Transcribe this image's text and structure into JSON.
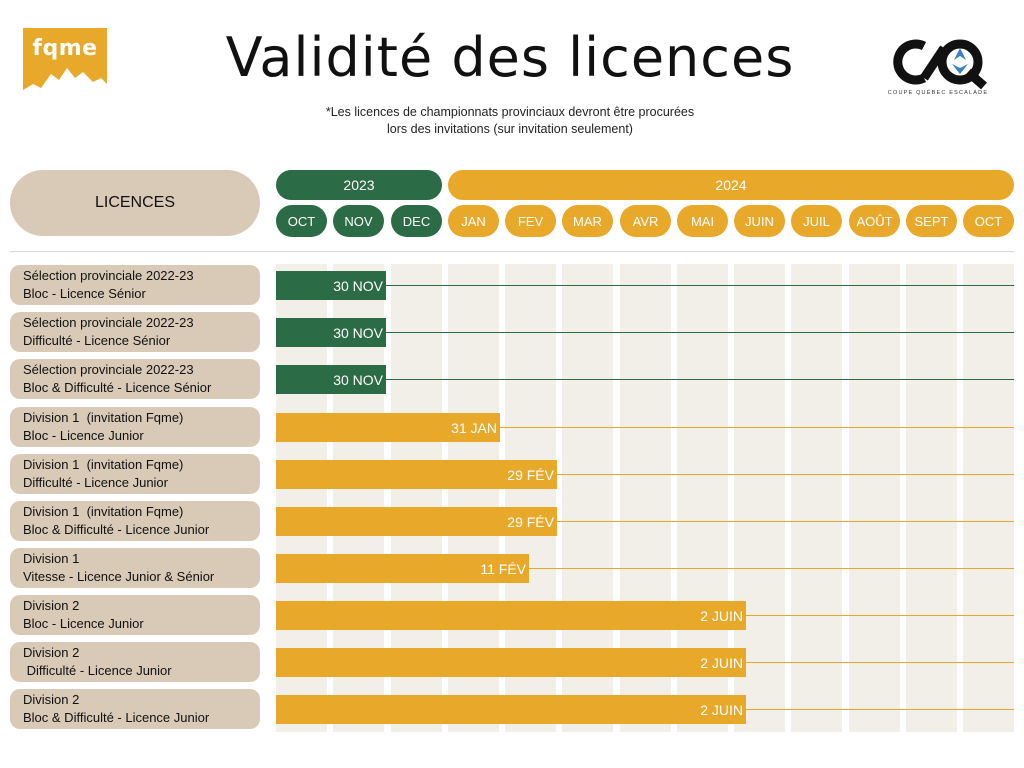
{
  "header": {
    "logo_text": "fqme",
    "title": "Validité des licences",
    "note_line1": "*Les licences de championnats provinciaux devront être procurées",
    "note_line2": "lors des invitations (sur invitation seulement)",
    "cq_tagline": "COUPE QUÉBEC ESCALADE"
  },
  "colors": {
    "green": "#2b6b45",
    "gold": "#e8a829",
    "beige": "#d8cab6",
    "column": "#f2efe8"
  },
  "table": {
    "licences_label": "LICENCES",
    "years": [
      "2023",
      "2024"
    ],
    "months": [
      "OCT",
      "NOV",
      "DEC",
      "JAN",
      "FEV",
      "MAR",
      "AVR",
      "MAI",
      "JUIN",
      "JUIL",
      "AOÛT",
      "SEPT",
      "OCT"
    ],
    "rows": [
      {
        "line1": "Sélection provinciale 2022-23",
        "line2": "Bloc - Licence Sénior",
        "end": "30 NOV",
        "color": "green",
        "months_valid": 2
      },
      {
        "line1": "Sélection provinciale 2022-23",
        "line2": "Difficulté - Licence Sénior",
        "end": "30 NOV",
        "color": "green",
        "months_valid": 2
      },
      {
        "line1": "Sélection provinciale 2022-23",
        "line2": "Bloc & Difficulté - Licence Sénior",
        "end": "30 NOV",
        "color": "green",
        "months_valid": 2
      },
      {
        "line1": "Division 1  (invitation Fqme)",
        "line2": "Bloc - Licence Junior",
        "end": "31 JAN",
        "color": "gold",
        "months_valid": 4
      },
      {
        "line1": "Division 1  (invitation Fqme)",
        "line2": "Difficulté - Licence Junior",
        "end": "29 FÉV",
        "color": "gold",
        "months_valid": 5
      },
      {
        "line1": "Division 1  (invitation Fqme)",
        "line2": "Bloc & Difficulté - Licence Junior",
        "end": "29 FÉV",
        "color": "gold",
        "months_valid": 5
      },
      {
        "line1": "Division 1",
        "line2": "Vitesse - Licence Junior & Sénior",
        "end": "11 FÉV",
        "color": "gold",
        "months_valid": 4.5
      },
      {
        "line1": "Division 2",
        "line2": "Bloc - Licence Junior",
        "end": "2 JUIN",
        "color": "gold",
        "months_valid": 8.3
      },
      {
        "line1": "Division 2",
        "line2": " Difficulté - Licence Junior",
        "end": "2 JUIN",
        "color": "gold",
        "months_valid": 8.3
      },
      {
        "line1": "Division 2",
        "line2": "Bloc & Difficulté - Licence Junior",
        "end": "2 JUIN",
        "color": "gold",
        "months_valid": 8.3
      }
    ]
  }
}
